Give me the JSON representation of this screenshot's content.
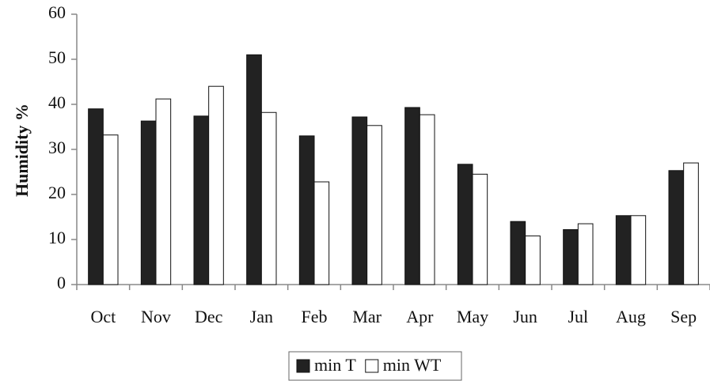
{
  "chart_data": {
    "type": "bar",
    "y_label": "Humidity %",
    "categories": [
      "Oct",
      "Nov",
      "Dec",
      "Jan",
      "Feb",
      "Mar",
      "Apr",
      "May",
      "Jun",
      "Jul",
      "Aug",
      "Sep"
    ],
    "series": [
      {
        "name": "min T",
        "color": "#222222",
        "values": [
          39,
          36.3,
          37.4,
          51,
          33,
          37.2,
          39.3,
          26.7,
          14,
          12.2,
          15.3,
          25.3
        ]
      },
      {
        "name": "min WT",
        "color": "#ffffff",
        "values": [
          33.2,
          41.2,
          44,
          38.2,
          22.8,
          35.3,
          37.7,
          24.5,
          10.8,
          13.5,
          15.3,
          27
        ]
      }
    ],
    "ylim": [
      0,
      60
    ],
    "yticks": [
      0,
      10,
      20,
      30,
      40,
      50,
      60
    ],
    "grid": false,
    "legend": "bottom"
  }
}
